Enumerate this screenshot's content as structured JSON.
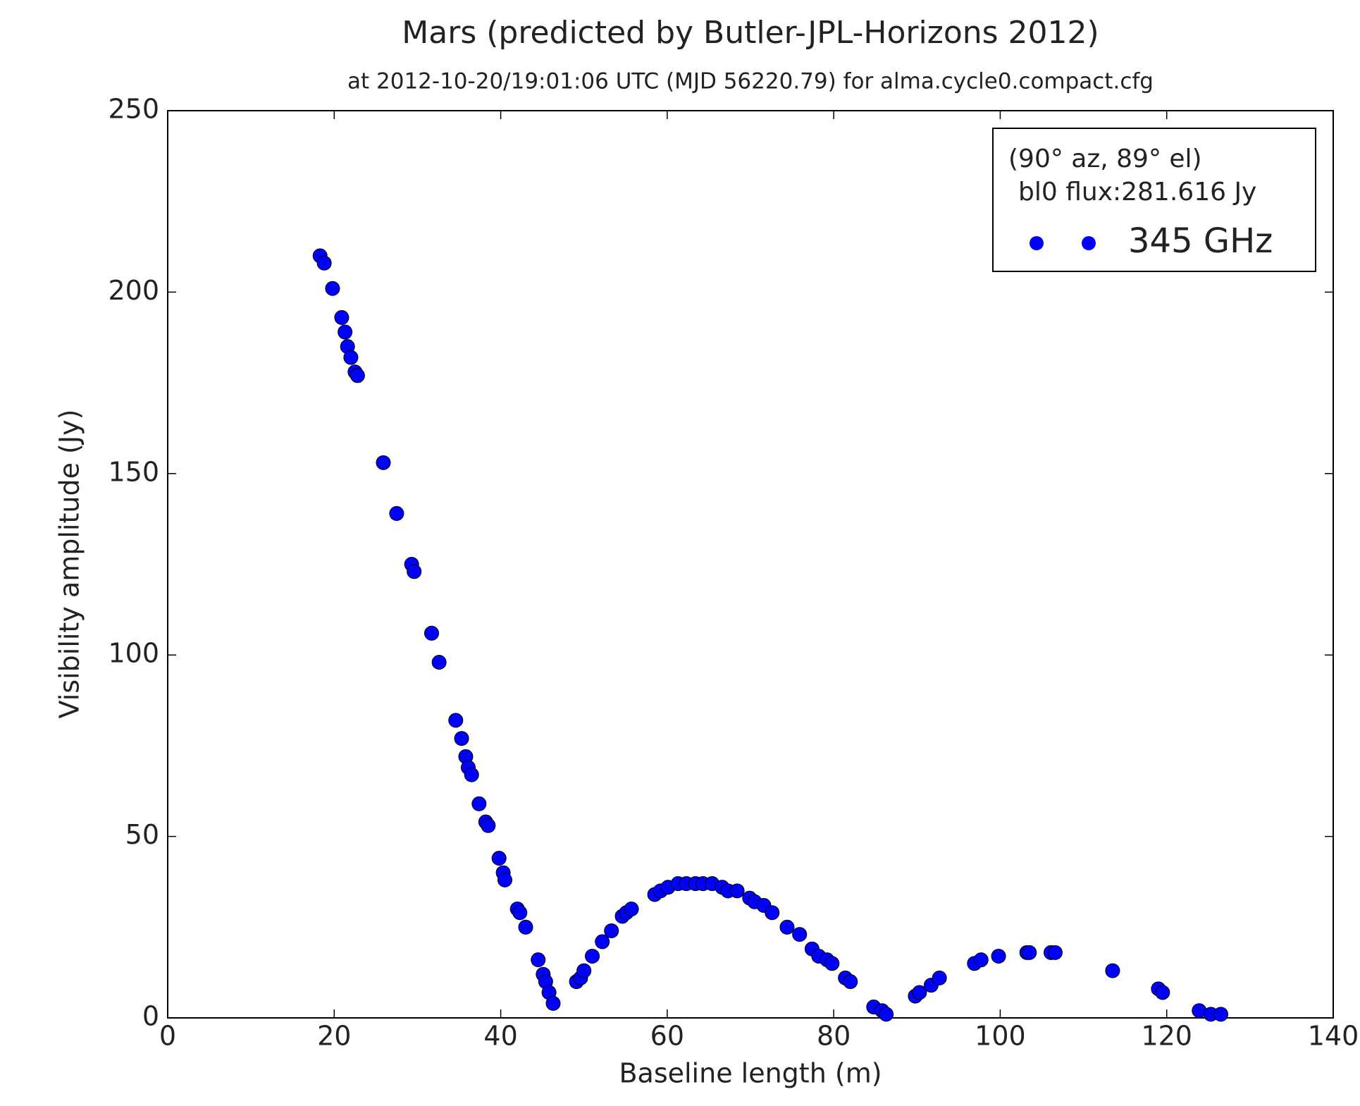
{
  "chart_data": {
    "type": "scatter",
    "title": "Mars (predicted by Butler-JPL-Horizons 2012)",
    "subtitle": "at 2012-10-20/19:01:06 UTC (MJD 56220.79) for alma.cycle0.compact.cfg",
    "xlabel": "Baseline length (m)",
    "ylabel": "Visibility amplitude (Jy)",
    "annotations": [
      "(90° az, 89° el)",
      "bl0 flux:281.616 Jy"
    ],
    "legend": "upper right",
    "xlim": [
      0,
      140
    ],
    "ylim": [
      0,
      250
    ],
    "xticks": [
      0,
      20,
      40,
      60,
      80,
      100,
      120,
      140
    ],
    "yticks": [
      0,
      50,
      100,
      150,
      200,
      250
    ],
    "series": [
      {
        "name": "345 GHz",
        "color": "#0000ff",
        "x": [
          18.3,
          18.8,
          19.8,
          20.9,
          21.3,
          21.6,
          22.0,
          22.5,
          22.8,
          25.9,
          27.5,
          29.3,
          29.6,
          31.7,
          32.6,
          34.6,
          35.3,
          35.8,
          36.1,
          36.5,
          37.4,
          38.2,
          38.5,
          39.8,
          40.3,
          40.5,
          42.0,
          42.3,
          43.0,
          44.5,
          45.1,
          45.4,
          45.8,
          46.3,
          49.1,
          49.6,
          50.0,
          51.0,
          52.2,
          53.3,
          54.6,
          55.1,
          55.7,
          58.5,
          59.2,
          60.1,
          61.3,
          62.3,
          63.4,
          64.3,
          65.4,
          66.6,
          67.3,
          68.4,
          69.9,
          70.5,
          71.6,
          72.6,
          74.4,
          75.9,
          77.4,
          78.2,
          79.2,
          79.8,
          81.4,
          82.0,
          84.8,
          85.8,
          86.3,
          89.8,
          90.3,
          91.7,
          92.7,
          96.9,
          97.7,
          99.8,
          103.2,
          103.5,
          106.1,
          106.6,
          113.5,
          119.0,
          119.5,
          123.9,
          125.3,
          126.5
        ],
        "values": [
          210,
          208,
          201,
          193,
          189,
          185,
          182,
          178,
          177,
          153,
          139,
          125,
          123,
          106,
          98,
          82,
          77,
          72,
          69,
          67,
          59,
          54,
          53,
          44,
          40,
          38,
          30,
          29,
          25,
          16,
          12,
          10,
          7,
          4,
          10,
          11,
          13,
          17,
          21,
          24,
          28,
          29,
          30,
          34,
          35,
          36,
          37,
          37,
          37,
          37,
          37,
          36,
          35,
          35,
          33,
          32,
          31,
          29,
          25,
          23,
          19,
          17,
          16,
          15,
          11,
          10,
          3,
          2,
          1,
          6,
          7,
          9,
          11,
          15,
          16,
          17,
          18,
          18,
          18,
          18,
          13,
          8,
          7,
          2,
          1,
          1
        ]
      }
    ]
  }
}
